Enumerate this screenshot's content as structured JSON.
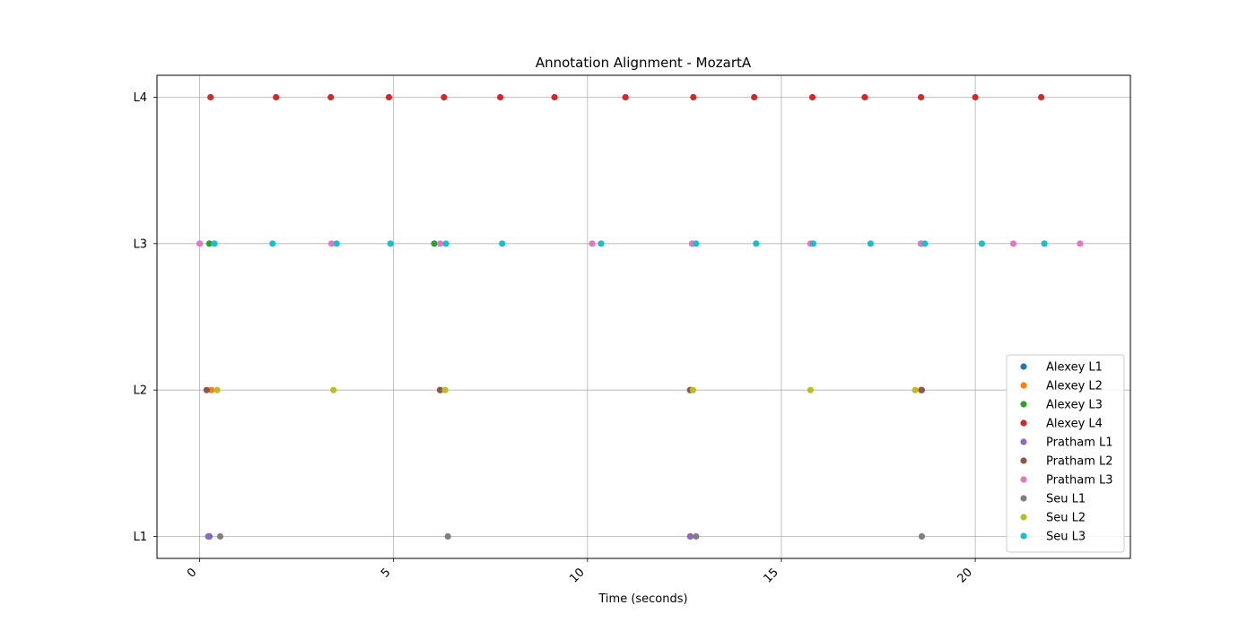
{
  "chart_data": {
    "type": "scatter",
    "title": "Annotation Alignment - MozartA",
    "xlabel": "Time (seconds)",
    "ylabel": "",
    "xlim": [
      -1.1,
      24.0
    ],
    "ylim": [
      0.85,
      4.15
    ],
    "x_ticks": [
      0,
      5,
      10,
      15,
      20
    ],
    "x_tick_labels": [
      "0",
      "5",
      "10",
      "15",
      "20"
    ],
    "y_ticks": [
      1,
      2,
      3,
      4
    ],
    "y_tick_labels": [
      "L1",
      "L2",
      "L3",
      "L4"
    ],
    "grid": true,
    "legend_position": "lower right",
    "series": [
      {
        "name": "Alexey L1",
        "color": "#1f77b4",
        "level": 1,
        "x": [
          0.25,
          12.65
        ]
      },
      {
        "name": "Alexey L2",
        "color": "#ff7f0e",
        "level": 2,
        "x": [
          0.3,
          6.2,
          12.65,
          18.6
        ]
      },
      {
        "name": "Alexey L3",
        "color": "#2ca02c",
        "level": 3,
        "x": [
          0.25,
          6.05,
          12.7,
          18.6
        ]
      },
      {
        "name": "Alexey L4",
        "color": "#d62728",
        "level": 4,
        "x": [
          0.28,
          1.97,
          3.38,
          4.88,
          6.3,
          7.75,
          9.15,
          10.98,
          12.73,
          14.3,
          15.8,
          17.15,
          18.6,
          20.0,
          21.7
        ]
      },
      {
        "name": "Pratham L1",
        "color": "#9467bd",
        "level": 1,
        "x": [
          0.22,
          12.65
        ]
      },
      {
        "name": "Pratham L2",
        "color": "#8c564b",
        "level": 2,
        "x": [
          0.18,
          6.2,
          12.65,
          18.62
        ]
      },
      {
        "name": "Pratham L3",
        "color": "#e377c2",
        "level": 3,
        "x": [
          0.0,
          3.4,
          6.2,
          10.12,
          12.7,
          15.75,
          18.6,
          20.98,
          22.7
        ]
      },
      {
        "name": "Seu L1",
        "color": "#7f7f7f",
        "level": 1,
        "x": [
          0.53,
          6.4,
          12.8,
          18.62
        ]
      },
      {
        "name": "Seu L2",
        "color": "#bcbd22",
        "level": 2,
        "x": [
          0.45,
          3.45,
          6.33,
          12.72,
          15.75,
          18.45
        ]
      },
      {
        "name": "Seu L3",
        "color": "#17becf",
        "level": 3,
        "x": [
          0.38,
          1.88,
          3.53,
          4.92,
          6.35,
          7.8,
          10.35,
          12.8,
          14.35,
          15.82,
          17.3,
          18.7,
          20.17,
          21.78
        ]
      }
    ]
  }
}
